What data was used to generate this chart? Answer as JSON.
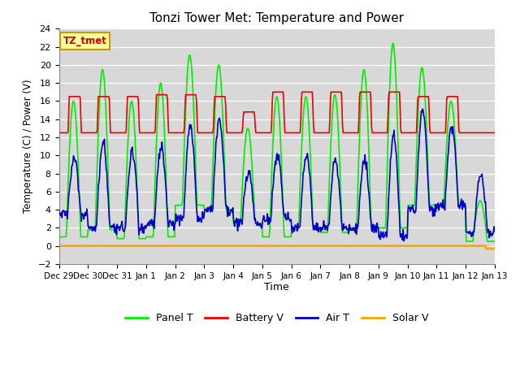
{
  "title": "Tonzi Tower Met: Temperature and Power",
  "xlabel": "Time",
  "ylabel": "Temperature (C) / Power (V)",
  "ylim": [
    -2,
    24
  ],
  "xlim": [
    0,
    15
  ],
  "bg_color": "#d8d8d8",
  "series_colors": {
    "panel_t": "#00ee00",
    "battery_v": "#ee0000",
    "air_t": "#0000cc",
    "solar_v": "#ffa500"
  },
  "series_lw": 1.2,
  "solar_lw": 2.0,
  "legend_labels": [
    "Panel T",
    "Battery V",
    "Air T",
    "Solar V"
  ],
  "tz_label": "TZ_tmet",
  "tz_label_color": "#cc0000",
  "tz_box_facecolor": "#ffff99",
  "tz_box_edgecolor": "#cc9900",
  "tick_labels": [
    "Dec 29",
    "Dec 30",
    "Dec 31",
    "Jan 1",
    "Jan 2",
    "Jan 3",
    "Jan 4",
    "Jan 5",
    "Jan 6",
    "Jan 7",
    "Jan 8",
    "Jan 9",
    "Jan 10",
    "Jan 11",
    "Jan 12",
    "Jan 13"
  ],
  "yticks": [
    -2,
    0,
    2,
    4,
    6,
    8,
    10,
    12,
    14,
    16,
    18,
    20,
    22,
    24
  ],
  "figsize": [
    6.4,
    4.8
  ],
  "dpi": 100
}
